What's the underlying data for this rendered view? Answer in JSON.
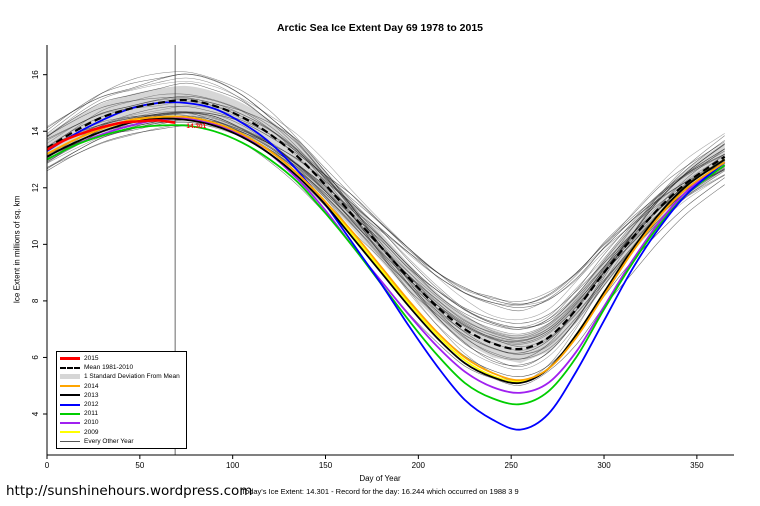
{
  "footer": {
    "note": "Today's Ice Extent: 14.301  - Record for the day: 16.244 which occurred on 1988 3 9",
    "url": "http://sunshinehours.wordpress.com"
  },
  "chart_data": {
    "type": "line",
    "title": "Arctic Sea Ice Extent Day 69 1978 to 2015",
    "xlabel": "Day of Year",
    "ylabel": "Ice Extent in millions of sq. km",
    "xlim": [
      0,
      370
    ],
    "ylim": [
      2.55,
      17.05
    ],
    "x_ticks": [
      0,
      50,
      100,
      150,
      200,
      250,
      300,
      350
    ],
    "y_ticks": [
      4,
      6,
      8,
      10,
      12,
      14,
      16
    ],
    "grid": false,
    "legend_position": "bottom-left-inside",
    "day_marker": 69,
    "annotation": {
      "text": "14.301",
      "x": 74,
      "y": 14.15
    },
    "x": [
      0,
      15,
      30,
      45,
      60,
      75,
      90,
      105,
      120,
      135,
      150,
      165,
      180,
      195,
      210,
      225,
      240,
      255,
      270,
      285,
      300,
      315,
      330,
      345,
      365
    ],
    "mean": {
      "name": "Mean 1981-2010",
      "color": "#000000",
      "values": [
        13.4,
        14.0,
        14.5,
        14.8,
        15.0,
        15.1,
        14.9,
        14.5,
        13.9,
        13.1,
        12.1,
        11.0,
        9.9,
        8.8,
        7.8,
        7.0,
        6.5,
        6.3,
        6.7,
        7.7,
        9.0,
        10.2,
        11.3,
        12.2,
        13.1
      ]
    },
    "std_dev": 0.5,
    "band_color": "#D6D6D6",
    "series": [
      {
        "name": "2009",
        "color": "#FFFF00",
        "values": [
          13.2,
          13.7,
          14.1,
          14.35,
          14.5,
          14.5,
          14.3,
          13.9,
          13.3,
          12.5,
          11.5,
          10.3,
          9.1,
          7.9,
          6.8,
          5.9,
          5.35,
          5.15,
          5.6,
          6.8,
          8.3,
          9.8,
          11.1,
          12.1,
          13.0
        ]
      },
      {
        "name": "2010",
        "color": "#A020F0",
        "values": [
          13.0,
          13.5,
          13.9,
          14.2,
          14.4,
          14.45,
          14.25,
          13.85,
          13.2,
          12.3,
          11.2,
          9.9,
          8.7,
          7.5,
          6.4,
          5.5,
          4.95,
          4.75,
          5.1,
          6.2,
          7.8,
          9.4,
          10.8,
          11.9,
          12.9
        ]
      },
      {
        "name": "2011",
        "color": "#00CD00",
        "values": [
          13.0,
          13.5,
          13.85,
          14.1,
          14.2,
          14.2,
          14.0,
          13.6,
          13.0,
          12.2,
          11.1,
          9.9,
          8.6,
          7.3,
          6.1,
          5.1,
          4.55,
          4.35,
          4.8,
          6.0,
          7.7,
          9.3,
          10.7,
          11.8,
          12.8
        ]
      },
      {
        "name": "2012",
        "color": "#0000FF",
        "values": [
          13.3,
          13.9,
          14.4,
          14.8,
          15.0,
          15.0,
          14.8,
          14.3,
          13.6,
          12.6,
          11.4,
          10.0,
          8.6,
          7.1,
          5.7,
          4.5,
          3.8,
          3.45,
          4.0,
          5.5,
          7.3,
          9.1,
          10.6,
          11.8,
          12.9
        ]
      },
      {
        "name": "2013",
        "color": "#000000",
        "values": [
          13.1,
          13.6,
          14.0,
          14.3,
          14.45,
          14.4,
          14.2,
          13.8,
          13.2,
          12.4,
          11.4,
          10.2,
          9.0,
          7.8,
          6.7,
          5.8,
          5.3,
          5.1,
          5.6,
          6.8,
          8.3,
          9.8,
          11.1,
          12.1,
          13.0
        ]
      },
      {
        "name": "2014",
        "color": "#FFA500",
        "values": [
          13.2,
          13.7,
          14.1,
          14.4,
          14.5,
          14.5,
          14.3,
          13.9,
          13.3,
          12.5,
          11.5,
          10.4,
          9.2,
          8.0,
          6.9,
          6.0,
          5.45,
          5.2,
          5.6,
          6.7,
          8.2,
          9.7,
          11.0,
          12.0,
          12.9
        ]
      }
    ],
    "series_2015": {
      "name": "2015",
      "color": "#FF0000",
      "x": [
        0,
        10,
        20,
        30,
        40,
        50,
        60,
        69
      ],
      "values": [
        13.35,
        13.7,
        13.95,
        14.15,
        14.3,
        14.35,
        14.38,
        14.301
      ]
    },
    "background_years": {
      "label": "Every Other Year",
      "count": 34,
      "seed": 7,
      "color": "#1a1a1a",
      "winter_spread": [
        -0.9,
        1.1
      ],
      "summer_spread": [
        -1.5,
        1.9
      ]
    },
    "legend": [
      {
        "label": "2015",
        "style": "thick",
        "color": "#FF0000"
      },
      {
        "label": "Mean 1981-2010",
        "style": "dashed",
        "color": "#000000"
      },
      {
        "label": "1 Standard Deviation From Mean",
        "style": "band",
        "color": "#D6D6D6"
      },
      {
        "label": "2014",
        "style": "solid",
        "color": "#FFA500"
      },
      {
        "label": "2013",
        "style": "solid",
        "color": "#000000"
      },
      {
        "label": "2012",
        "style": "solid",
        "color": "#0000FF"
      },
      {
        "label": "2011",
        "style": "solid",
        "color": "#00CD00"
      },
      {
        "label": "2010",
        "style": "solid",
        "color": "#A020F0"
      },
      {
        "label": "2009",
        "style": "solid",
        "color": "#FFFF00"
      },
      {
        "label": "Every Other Year",
        "style": "thin",
        "color": "#555555"
      }
    ]
  }
}
